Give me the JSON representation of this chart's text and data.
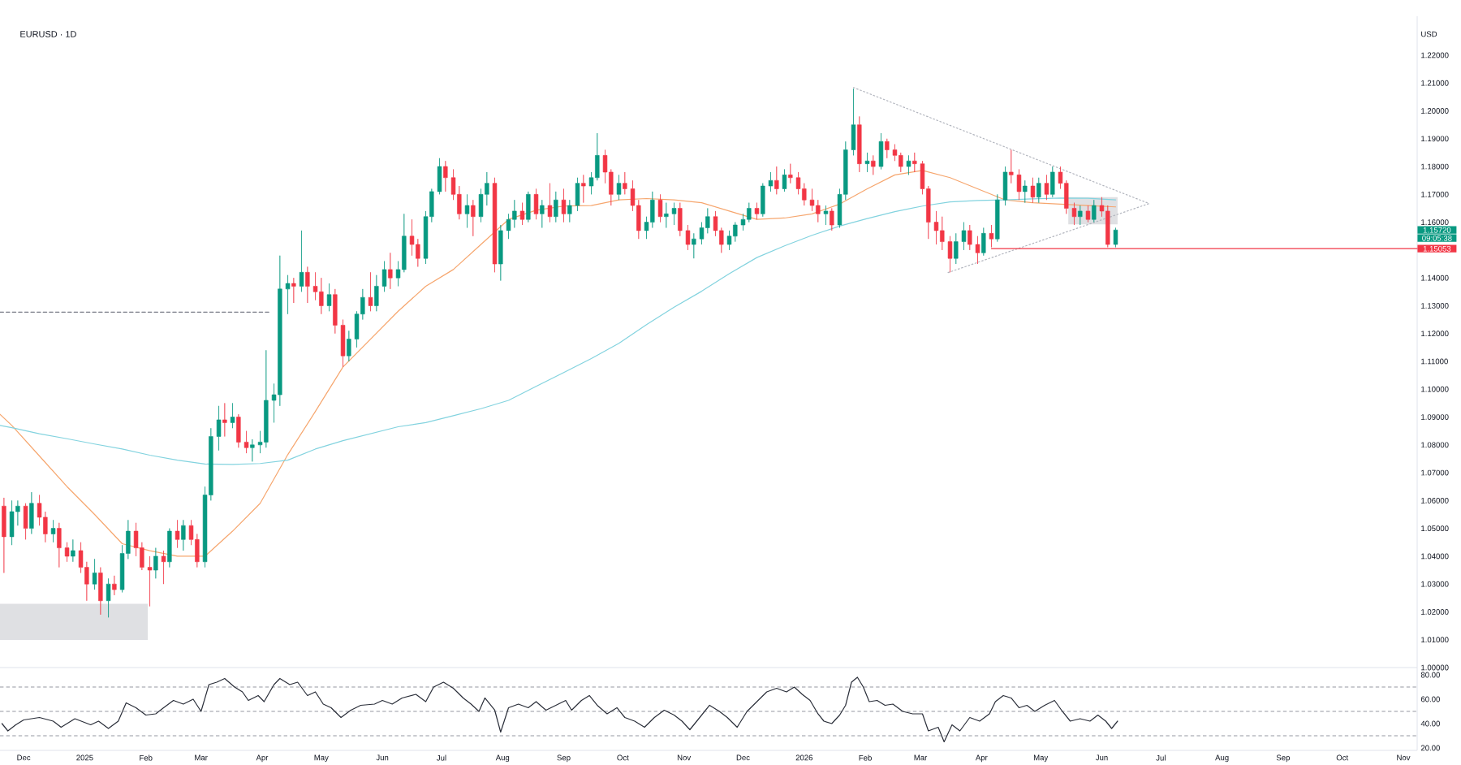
{
  "chart_data": [
    {
      "type": "candlestick",
      "title": "EURUSD · 1D",
      "ylabel": "USD",
      "xlim": [
        "2024-11-19",
        "2026-11-08"
      ],
      "ylim": [
        1.0,
        1.234
      ],
      "tick_labels": "y",
      "yticks": [
        {
          "value": 1.0,
          "label": "1.00000"
        },
        {
          "value": 1.01,
          "label": "1.01000"
        },
        {
          "value": 1.02,
          "label": "1.02000"
        },
        {
          "value": 1.03,
          "label": "1.03000"
        },
        {
          "value": 1.04,
          "label": "1.04000"
        },
        {
          "value": 1.05,
          "label": "1.05000"
        },
        {
          "value": 1.06,
          "label": "1.06000"
        },
        {
          "value": 1.07,
          "label": "1.07000"
        },
        {
          "value": 1.08,
          "label": "1.08000"
        },
        {
          "value": 1.09,
          "label": "1.09000"
        },
        {
          "value": 1.1,
          "label": "1.10000"
        },
        {
          "value": 1.11,
          "label": "1.11000"
        },
        {
          "value": 1.12,
          "label": "1.12000"
        },
        {
          "value": 1.13,
          "label": "1.13000"
        },
        {
          "value": 1.14,
          "label": "1.14000"
        },
        {
          "value": 1.16,
          "label": "1.16000"
        },
        {
          "value": 1.17,
          "label": "1.17000"
        },
        {
          "value": 1.18,
          "label": "1.18000"
        },
        {
          "value": 1.19,
          "label": "1.19000"
        },
        {
          "value": 1.2,
          "label": "1.20000"
        },
        {
          "value": 1.21,
          "label": "1.21000"
        },
        {
          "value": 1.22,
          "label": "1.22000"
        }
      ],
      "x": [
        "2024-11-21",
        "2024-11-25",
        "2024-11-28",
        "2024-12-02",
        "2024-12-05",
        "2024-12-09",
        "2024-12-12",
        "2024-12-16",
        "2024-12-19",
        "2024-12-23",
        "2024-12-26",
        "2024-12-30",
        "2025-01-02",
        "2025-01-06",
        "2025-01-09",
        "2025-01-13",
        "2025-01-16",
        "2025-01-20",
        "2025-01-23",
        "2025-01-27",
        "2025-01-30",
        "2025-02-03",
        "2025-02-06",
        "2025-02-10",
        "2025-02-13",
        "2025-02-17",
        "2025-02-20",
        "2025-02-24",
        "2025-02-27",
        "2025-03-03",
        "2025-03-06",
        "2025-03-10",
        "2025-03-13",
        "2025-03-17",
        "2025-03-20",
        "2025-03-24",
        "2025-03-27",
        "2025-03-31",
        "2025-04-03",
        "2025-04-07",
        "2025-04-10",
        "2025-04-14",
        "2025-04-17",
        "2025-04-21",
        "2025-04-24",
        "2025-04-28",
        "2025-05-01",
        "2025-05-05",
        "2025-05-08",
        "2025-05-12",
        "2025-05-15",
        "2025-05-19",
        "2025-05-22",
        "2025-05-26",
        "2025-05-29",
        "2025-06-02",
        "2025-06-05",
        "2025-06-09",
        "2025-06-12",
        "2025-06-16",
        "2025-06-19",
        "2025-06-23",
        "2025-06-26",
        "2025-06-30",
        "2025-07-03",
        "2025-07-07",
        "2025-07-10",
        "2025-07-14",
        "2025-07-17",
        "2025-07-21",
        "2025-07-24",
        "2025-07-28",
        "2025-07-31",
        "2025-08-04",
        "2025-08-07",
        "2025-08-11",
        "2025-08-14",
        "2025-08-18",
        "2025-08-21",
        "2025-08-25",
        "2025-08-28",
        "2025-09-01",
        "2025-09-04",
        "2025-09-08",
        "2025-09-11",
        "2025-09-15",
        "2025-09-18",
        "2025-09-22",
        "2025-09-25",
        "2025-09-29",
        "2025-10-02",
        "2025-10-06",
        "2025-10-09",
        "2025-10-13",
        "2025-10-16",
        "2025-10-20",
        "2025-10-23",
        "2025-10-27",
        "2025-10-30",
        "2025-11-03",
        "2025-11-06",
        "2025-11-10",
        "2025-11-13",
        "2025-11-17",
        "2025-11-20",
        "2025-11-24",
        "2025-11-27",
        "2025-12-01",
        "2025-12-04",
        "2025-12-08",
        "2025-12-11",
        "2025-12-15",
        "2025-12-18",
        "2025-12-22",
        "2025-12-25",
        "2025-12-29",
        "2026-01-01",
        "2026-01-05",
        "2026-01-08",
        "2026-01-12",
        "2026-01-15",
        "2026-01-19",
        "2026-01-22",
        "2026-01-26",
        "2026-01-29",
        "2026-02-02",
        "2026-02-05",
        "2026-02-09",
        "2026-02-12",
        "2026-02-16",
        "2026-02-19",
        "2026-02-23",
        "2026-02-26",
        "2026-03-02",
        "2026-03-05",
        "2026-03-09",
        "2026-03-12",
        "2026-03-16",
        "2026-03-19",
        "2026-03-23",
        "2026-03-26",
        "2026-03-30",
        "2026-04-02",
        "2026-04-06",
        "2026-04-09",
        "2026-04-13",
        "2026-04-16",
        "2026-04-20",
        "2026-04-23",
        "2026-04-27",
        "2026-04-30",
        "2026-05-04",
        "2026-05-07",
        "2026-05-11",
        "2026-05-14",
        "2026-05-18",
        "2026-05-21",
        "2026-05-25",
        "2026-05-28",
        "2026-06-01",
        "2026-06-04",
        "2026-06-08"
      ],
      "ohlc": [
        [
          1.058,
          1.061,
          1.034,
          1.047
        ],
        [
          1.047,
          1.06,
          1.044,
          1.056
        ],
        [
          1.056,
          1.06,
          1.051,
          1.058
        ],
        [
          1.058,
          1.059,
          1.046,
          1.05
        ],
        [
          1.05,
          1.063,
          1.048,
          1.059
        ],
        [
          1.059,
          1.062,
          1.051,
          1.054
        ],
        [
          1.054,
          1.056,
          1.045,
          1.048
        ],
        [
          1.048,
          1.053,
          1.045,
          1.05
        ],
        [
          1.05,
          1.052,
          1.036,
          1.043
        ],
        [
          1.043,
          1.045,
          1.038,
          1.04
        ],
        [
          1.04,
          1.046,
          1.038,
          1.042
        ],
        [
          1.042,
          1.045,
          1.034,
          1.036
        ],
        [
          1.036,
          1.038,
          1.024,
          1.03
        ],
        [
          1.03,
          1.039,
          1.028,
          1.034
        ],
        [
          1.034,
          1.036,
          1.019,
          1.024
        ],
        [
          1.024,
          1.032,
          1.018,
          1.03
        ],
        [
          1.03,
          1.033,
          1.026,
          1.028
        ],
        [
          1.028,
          1.044,
          1.027,
          1.041
        ],
        [
          1.041,
          1.053,
          1.039,
          1.049
        ],
        [
          1.049,
          1.052,
          1.04,
          1.043
        ],
        [
          1.043,
          1.045,
          1.035,
          1.036
        ],
        [
          1.036,
          1.04,
          1.022,
          1.035
        ],
        [
          1.035,
          1.043,
          1.032,
          1.04
        ],
        [
          1.04,
          1.042,
          1.03,
          1.038
        ],
        [
          1.038,
          1.05,
          1.036,
          1.049
        ],
        [
          1.049,
          1.053,
          1.043,
          1.046
        ],
        [
          1.046,
          1.053,
          1.042,
          1.051
        ],
        [
          1.051,
          1.053,
          1.044,
          1.046
        ],
        [
          1.046,
          1.048,
          1.036,
          1.038
        ],
        [
          1.038,
          1.065,
          1.036,
          1.062
        ],
        [
          1.062,
          1.086,
          1.06,
          1.083
        ],
        [
          1.083,
          1.094,
          1.078,
          1.089
        ],
        [
          1.089,
          1.095,
          1.083,
          1.088
        ],
        [
          1.088,
          1.095,
          1.086,
          1.09
        ],
        [
          1.09,
          1.091,
          1.079,
          1.081
        ],
        [
          1.081,
          1.085,
          1.077,
          1.079
        ],
        [
          1.079,
          1.082,
          1.074,
          1.08
        ],
        [
          1.08,
          1.085,
          1.077,
          1.081
        ],
        [
          1.081,
          1.114,
          1.079,
          1.096
        ],
        [
          1.096,
          1.102,
          1.088,
          1.098
        ],
        [
          1.098,
          1.148,
          1.094,
          1.136
        ],
        [
          1.136,
          1.141,
          1.127,
          1.138
        ],
        [
          1.138,
          1.14,
          1.131,
          1.137
        ],
        [
          1.137,
          1.157,
          1.135,
          1.142
        ],
        [
          1.142,
          1.144,
          1.131,
          1.137
        ],
        [
          1.137,
          1.142,
          1.132,
          1.135
        ],
        [
          1.135,
          1.14,
          1.127,
          1.13
        ],
        [
          1.13,
          1.138,
          1.128,
          1.134
        ],
        [
          1.134,
          1.136,
          1.12,
          1.123
        ],
        [
          1.123,
          1.125,
          1.108,
          1.112
        ],
        [
          1.112,
          1.121,
          1.11,
          1.118
        ],
        [
          1.118,
          1.128,
          1.115,
          1.127
        ],
        [
          1.127,
          1.136,
          1.125,
          1.133
        ],
        [
          1.133,
          1.142,
          1.128,
          1.13
        ],
        [
          1.13,
          1.141,
          1.128,
          1.137
        ],
        [
          1.137,
          1.146,
          1.135,
          1.143
        ],
        [
          1.143,
          1.149,
          1.136,
          1.14
        ],
        [
          1.14,
          1.146,
          1.137,
          1.143
        ],
        [
          1.143,
          1.163,
          1.142,
          1.155
        ],
        [
          1.155,
          1.161,
          1.148,
          1.152
        ],
        [
          1.152,
          1.154,
          1.144,
          1.147
        ],
        [
          1.147,
          1.164,
          1.145,
          1.162
        ],
        [
          1.162,
          1.172,
          1.16,
          1.171
        ],
        [
          1.171,
          1.183,
          1.17,
          1.18
        ],
        [
          1.18,
          1.182,
          1.171,
          1.176
        ],
        [
          1.176,
          1.179,
          1.168,
          1.17
        ],
        [
          1.17,
          1.173,
          1.161,
          1.163
        ],
        [
          1.163,
          1.17,
          1.158,
          1.166
        ],
        [
          1.166,
          1.168,
          1.155,
          1.162
        ],
        [
          1.162,
          1.172,
          1.16,
          1.17
        ],
        [
          1.17,
          1.178,
          1.166,
          1.174
        ],
        [
          1.174,
          1.176,
          1.142,
          1.145
        ],
        [
          1.145,
          1.159,
          1.139,
          1.157
        ],
        [
          1.157,
          1.163,
          1.154,
          1.161
        ],
        [
          1.161,
          1.168,
          1.158,
          1.164
        ],
        [
          1.164,
          1.167,
          1.159,
          1.161
        ],
        [
          1.161,
          1.171,
          1.16,
          1.17
        ],
        [
          1.17,
          1.172,
          1.161,
          1.163
        ],
        [
          1.163,
          1.168,
          1.158,
          1.166
        ],
        [
          1.166,
          1.174,
          1.16,
          1.162
        ],
        [
          1.162,
          1.171,
          1.16,
          1.168
        ],
        [
          1.168,
          1.172,
          1.16,
          1.163
        ],
        [
          1.163,
          1.168,
          1.16,
          1.166
        ],
        [
          1.166,
          1.176,
          1.164,
          1.174
        ],
        [
          1.174,
          1.177,
          1.167,
          1.173
        ],
        [
          1.173,
          1.178,
          1.17,
          1.176
        ],
        [
          1.176,
          1.192,
          1.175,
          1.184
        ],
        [
          1.184,
          1.186,
          1.174,
          1.178
        ],
        [
          1.178,
          1.179,
          1.166,
          1.17
        ],
        [
          1.17,
          1.177,
          1.168,
          1.174
        ],
        [
          1.174,
          1.178,
          1.17,
          1.172
        ],
        [
          1.172,
          1.175,
          1.164,
          1.166
        ],
        [
          1.166,
          1.168,
          1.154,
          1.157
        ],
        [
          1.157,
          1.162,
          1.154,
          1.16
        ],
        [
          1.16,
          1.171,
          1.158,
          1.168
        ],
        [
          1.168,
          1.17,
          1.16,
          1.162
        ],
        [
          1.162,
          1.167,
          1.158,
          1.163
        ],
        [
          1.163,
          1.167,
          1.159,
          1.165
        ],
        [
          1.165,
          1.167,
          1.155,
          1.157
        ],
        [
          1.157,
          1.159,
          1.15,
          1.152
        ],
        [
          1.152,
          1.156,
          1.147,
          1.154
        ],
        [
          1.154,
          1.16,
          1.152,
          1.158
        ],
        [
          1.158,
          1.165,
          1.156,
          1.162
        ],
        [
          1.162,
          1.164,
          1.155,
          1.157
        ],
        [
          1.157,
          1.158,
          1.149,
          1.152
        ],
        [
          1.152,
          1.157,
          1.15,
          1.155
        ],
        [
          1.155,
          1.16,
          1.153,
          1.159
        ],
        [
          1.159,
          1.163,
          1.157,
          1.161
        ],
        [
          1.161,
          1.167,
          1.16,
          1.165
        ],
        [
          1.165,
          1.167,
          1.161,
          1.163
        ],
        [
          1.163,
          1.174,
          1.162,
          1.173
        ],
        [
          1.173,
          1.178,
          1.171,
          1.175
        ],
        [
          1.175,
          1.18,
          1.17,
          1.172
        ],
        [
          1.172,
          1.179,
          1.171,
          1.177
        ],
        [
          1.177,
          1.181,
          1.174,
          1.176
        ],
        [
          1.176,
          1.178,
          1.17,
          1.172
        ],
        [
          1.172,
          1.174,
          1.166,
          1.168
        ],
        [
          1.168,
          1.172,
          1.164,
          1.166
        ],
        [
          1.166,
          1.168,
          1.16,
          1.163
        ],
        [
          1.163,
          1.166,
          1.159,
          1.164
        ],
        [
          1.164,
          1.165,
          1.157,
          1.159
        ],
        [
          1.159,
          1.172,
          1.158,
          1.17
        ],
        [
          1.17,
          1.189,
          1.168,
          1.186
        ],
        [
          1.186,
          1.208,
          1.184,
          1.195
        ],
        [
          1.195,
          1.198,
          1.178,
          1.181
        ],
        [
          1.181,
          1.185,
          1.178,
          1.182
        ],
        [
          1.182,
          1.184,
          1.177,
          1.18
        ],
        [
          1.18,
          1.192,
          1.179,
          1.189
        ],
        [
          1.189,
          1.19,
          1.183,
          1.186
        ],
        [
          1.186,
          1.188,
          1.182,
          1.184
        ],
        [
          1.184,
          1.185,
          1.178,
          1.18
        ],
        [
          1.18,
          1.184,
          1.177,
          1.182
        ],
        [
          1.182,
          1.185,
          1.178,
          1.181
        ],
        [
          1.181,
          1.182,
          1.17,
          1.172
        ],
        [
          1.172,
          1.173,
          1.154,
          1.16
        ],
        [
          1.16,
          1.164,
          1.152,
          1.157
        ],
        [
          1.157,
          1.162,
          1.15,
          1.153
        ],
        [
          1.153,
          1.155,
          1.142,
          1.147
        ],
        [
          1.147,
          1.156,
          1.145,
          1.153
        ],
        [
          1.153,
          1.16,
          1.15,
          1.157
        ],
        [
          1.157,
          1.159,
          1.15,
          1.152
        ],
        [
          1.152,
          1.155,
          1.145,
          1.149
        ],
        [
          1.149,
          1.158,
          1.148,
          1.156
        ],
        [
          1.156,
          1.159,
          1.151,
          1.154
        ],
        [
          1.154,
          1.17,
          1.153,
          1.168
        ],
        [
          1.168,
          1.18,
          1.166,
          1.178
        ],
        [
          1.178,
          1.186,
          1.174,
          1.177
        ],
        [
          1.177,
          1.179,
          1.168,
          1.171
        ],
        [
          1.171,
          1.175,
          1.167,
          1.173
        ],
        [
          1.173,
          1.176,
          1.167,
          1.169
        ],
        [
          1.169,
          1.176,
          1.167,
          1.174
        ],
        [
          1.174,
          1.177,
          1.168,
          1.17
        ],
        [
          1.17,
          1.18,
          1.169,
          1.178
        ],
        [
          1.178,
          1.18,
          1.172,
          1.174
        ],
        [
          1.174,
          1.175,
          1.163,
          1.165
        ],
        [
          1.165,
          1.167,
          1.159,
          1.162
        ],
        [
          1.162,
          1.166,
          1.159,
          1.164
        ],
        [
          1.164,
          1.166,
          1.16,
          1.161
        ],
        [
          1.161,
          1.168,
          1.16,
          1.166
        ],
        [
          1.166,
          1.169,
          1.162,
          1.164
        ],
        [
          1.164,
          1.166,
          1.151,
          1.152
        ],
        [
          1.152,
          1.158,
          1.151,
          1.1572
        ]
      ],
      "colors": [
        "#f23645",
        "#089981",
        "#089981",
        "#f23645",
        "#089981",
        "#f23645",
        "#f23645",
        "#089981",
        "#f23645",
        "#f23645",
        "#089981",
        "#f23645",
        "#f23645",
        "#089981",
        "#f23645",
        "#089981",
        "#f23645",
        "#089981",
        "#089981",
        "#f23645",
        "#f23645",
        "#f23645",
        "#089981",
        "#f23645",
        "#089981",
        "#f23645",
        "#089981",
        "#f23645",
        "#f23645",
        "#089981",
        "#089981",
        "#089981",
        "#f23645",
        "#089981",
        "#f23645",
        "#f23645",
        "#089981",
        "#089981",
        "#089981",
        "#089981",
        "#089981",
        "#089981",
        "#f23645",
        "#089981",
        "#f23645",
        "#f23645",
        "#f23645",
        "#089981",
        "#f23645",
        "#f23645",
        "#089981",
        "#089981",
        "#089981",
        "#f23645",
        "#089981",
        "#089981",
        "#f23645",
        "#089981",
        "#089981",
        "#f23645",
        "#f23645",
        "#089981",
        "#089981",
        "#089981",
        "#f23645",
        "#f23645",
        "#f23645",
        "#089981",
        "#f23645",
        "#089981",
        "#089981",
        "#f23645",
        "#089981",
        "#089981",
        "#089981",
        "#f23645",
        "#089981",
        "#f23645",
        "#089981",
        "#f23645",
        "#089981",
        "#f23645",
        "#089981",
        "#089981",
        "#f23645",
        "#089981",
        "#089981",
        "#f23645",
        "#f23645",
        "#089981",
        "#f23645",
        "#f23645",
        "#f23645",
        "#089981",
        "#089981",
        "#f23645",
        "#089981",
        "#089981",
        "#f23645",
        "#f23645",
        "#089981",
        "#089981",
        "#089981",
        "#f23645",
        "#f23645",
        "#089981",
        "#089981",
        "#089981",
        "#089981",
        "#f23645",
        "#089981",
        "#089981",
        "#f23645",
        "#089981",
        "#f23645",
        "#f23645",
        "#f23645",
        "#f23645",
        "#f23645",
        "#089981",
        "#f23645",
        "#089981",
        "#089981",
        "#089981",
        "#f23645",
        "#089981",
        "#f23645",
        "#089981",
        "#f23645",
        "#f23645",
        "#f23645",
        "#089981",
        "#f23645",
        "#f23645",
        "#f23645",
        "#f23645",
        "#f23645",
        "#f23645",
        "#089981",
        "#089981",
        "#f23645",
        "#f23645",
        "#089981",
        "#f23645",
        "#089981",
        "#089981",
        "#f23645",
        "#f23645",
        "#089981",
        "#f23645",
        "#089981",
        "#f23645",
        "#089981",
        "#f23645",
        "#f23645",
        "#f23645",
        "#089981",
        "#f23645",
        "#089981",
        "#f23645",
        "#f23645",
        "#089981"
      ],
      "series": [
        {
          "type": "line",
          "color": "#dfe0e3",
          "x": [
            "2024-11-19",
            "2025-02-02"
          ],
          "values": [
            null,
            null
          ],
          "lower": [
            1.0099,
            1.0099
          ],
          "upper": [
            1.0229,
            1.0229
          ]
        },
        {
          "type": "line",
          "color": "#dfe0e3",
          "x": [
            "2026-05-15",
            "2026-06-09"
          ],
          "values": [
            null,
            null
          ],
          "lower": [
            1.1592,
            1.1592
          ],
          "upper": [
            1.169,
            1.169
          ]
        },
        {
          "type": "line",
          "color": "#f6a66e",
          "x": [
            "2024-11-19",
            "2024-11-25",
            "2024-12-09",
            "2024-12-23",
            "2025-01-06",
            "2025-01-20",
            "2025-02-03",
            "2025-02-17",
            "2025-03-03",
            "2025-03-17",
            "2025-03-31",
            "2025-04-14",
            "2025-04-28",
            "2025-05-12",
            "2025-05-26",
            "2025-06-09",
            "2025-06-23",
            "2025-07-07",
            "2025-07-21",
            "2025-08-04",
            "2025-08-18",
            "2025-09-01",
            "2025-09-15",
            "2025-09-29",
            "2025-10-13",
            "2025-10-27",
            "2025-11-10",
            "2025-11-24",
            "2025-12-08",
            "2025-12-22",
            "2026-01-05",
            "2026-01-19",
            "2026-02-02",
            "2026-02-16",
            "2026-03-02",
            "2026-03-16",
            "2026-03-30",
            "2026-04-13",
            "2026-04-27",
            "2026-05-11",
            "2026-05-25",
            "2026-06-08"
          ],
          "values": [
            1.091,
            1.087,
            1.076,
            1.065,
            1.055,
            1.0445,
            1.042,
            1.04,
            1.04,
            1.049,
            1.059,
            1.0765,
            1.092,
            1.108,
            1.118,
            1.128,
            1.137,
            1.143,
            1.152,
            1.161,
            1.1643,
            1.1658,
            1.166,
            1.168,
            1.1685,
            1.168,
            1.167,
            1.164,
            1.161,
            1.1615,
            1.163,
            1.1665,
            1.172,
            1.177,
            1.1786,
            1.176,
            1.172,
            1.168,
            1.167,
            1.1665,
            1.166,
            1.1655
          ]
        },
        {
          "type": "line",
          "color": "#83d3df",
          "x": [
            "2024-11-19",
            "2024-11-25",
            "2024-12-09",
            "2024-12-23",
            "2025-01-06",
            "2025-01-20",
            "2025-02-03",
            "2025-02-17",
            "2025-03-03",
            "2025-03-17",
            "2025-03-31",
            "2025-04-14",
            "2025-04-28",
            "2025-05-12",
            "2025-05-26",
            "2025-06-09",
            "2025-06-23",
            "2025-07-07",
            "2025-07-21",
            "2025-08-04",
            "2025-08-18",
            "2025-09-01",
            "2025-09-15",
            "2025-09-29",
            "2025-10-13",
            "2025-10-27",
            "2025-11-10",
            "2025-11-24",
            "2025-12-08",
            "2025-12-22",
            "2026-01-05",
            "2026-01-19",
            "2026-02-02",
            "2026-02-16",
            "2026-03-02",
            "2026-03-16",
            "2026-03-30",
            "2026-04-13",
            "2026-04-27",
            "2026-05-11",
            "2026-05-25",
            "2026-06-08"
          ],
          "values": [
            1.087,
            1.0862,
            1.084,
            1.0822,
            1.0803,
            1.0785,
            1.0763,
            1.0745,
            1.0731,
            1.073,
            1.0733,
            1.0745,
            1.0785,
            1.0815,
            1.084,
            1.0865,
            1.088,
            1.0905,
            1.093,
            1.096,
            1.101,
            1.106,
            1.111,
            1.1165,
            1.1232,
            1.1295,
            1.1352,
            1.1415,
            1.1473,
            1.1515,
            1.1553,
            1.1586,
            1.1613,
            1.1638,
            1.1658,
            1.1673,
            1.1678,
            1.168,
            1.1684,
            1.1687,
            1.1686,
            1.168
          ]
        },
        {
          "type": "line",
          "color": "#787b86",
          "line_style": "dashed",
          "x": [
            "2024-11-19",
            "2025-04-05"
          ],
          "values": [
            1.1277,
            1.1277
          ]
        },
        {
          "type": "line",
          "color": "#b2b5be",
          "line_style": "dotted",
          "x": [
            "2026-01-26",
            "2026-06-25"
          ],
          "values": [
            1.2084,
            1.1667
          ]
        },
        {
          "type": "line",
          "color": "#b2b5be",
          "line_style": "dotted",
          "x": [
            "2026-03-15",
            "2026-06-25"
          ],
          "values": [
            1.1419,
            1.1667
          ]
        },
        {
          "type": "line",
          "color": "#f23645",
          "x": [
            "2026-04-06",
            "2026-11-08"
          ],
          "values": [
            1.1505,
            1.1505
          ]
        }
      ],
      "annotations": [
        "1.15720",
        "09:05:38",
        "1.15053"
      ]
    },
    {
      "type": "line",
      "xlim": [
        "2024-11-19",
        "2026-11-08"
      ],
      "ylim": [
        18,
        86
      ],
      "yticks": [
        {
          "value": 20,
          "label": "20.00"
        },
        {
          "value": 40,
          "label": "40.00"
        },
        {
          "value": 60,
          "label": "60.00"
        },
        {
          "value": 80,
          "label": "80.00"
        }
      ],
      "xticks": [
        {
          "value": "2024-12-01",
          "label": "Dec"
        },
        {
          "value": "2025-01-01",
          "label": "2025"
        },
        {
          "value": "2025-02-01",
          "label": "Feb"
        },
        {
          "value": "2025-03-01",
          "label": "Mar"
        },
        {
          "value": "2025-04-01",
          "label": "Apr"
        },
        {
          "value": "2025-05-01",
          "label": "May"
        },
        {
          "value": "2025-06-01",
          "label": "Jun"
        },
        {
          "value": "2025-07-01",
          "label": "Jul"
        },
        {
          "value": "2025-08-01",
          "label": "Aug"
        },
        {
          "value": "2025-09-01",
          "label": "Sep"
        },
        {
          "value": "2025-10-01",
          "label": "Oct"
        },
        {
          "value": "2025-11-01",
          "label": "Nov"
        },
        {
          "value": "2025-12-01",
          "label": "Dec"
        },
        {
          "value": "2026-01-01",
          "label": "2026"
        },
        {
          "value": "2026-02-01",
          "label": "Feb"
        },
        {
          "value": "2026-03-01",
          "label": "Mar"
        },
        {
          "value": "2026-04-01",
          "label": "Apr"
        },
        {
          "value": "2026-05-01",
          "label": "May"
        },
        {
          "value": "2026-06-01",
          "label": "Jun"
        },
        {
          "value": "2026-07-01",
          "label": "Jul"
        },
        {
          "value": "2026-08-01",
          "label": "Aug"
        },
        {
          "value": "2026-09-01",
          "label": "Sep"
        },
        {
          "value": "2026-10-01",
          "label": "Oct"
        },
        {
          "value": "2026-11-01",
          "label": "Nov"
        }
      ],
      "ref_lines": [
        {
          "axis": "y",
          "value": 70,
          "color": "#9598a1",
          "line_style": "dashed"
        },
        {
          "axis": "y",
          "value": 50,
          "color": "#9598a1",
          "line_style": "dashed"
        },
        {
          "axis": "y",
          "value": 30,
          "color": "#9598a1",
          "line_style": "dashed"
        }
      ],
      "series": [
        {
          "color": "#2a2e39",
          "x": [
            "2024-11-20",
            "2024-11-23",
            "2024-11-27",
            "2024-12-01",
            "2024-12-09",
            "2024-12-16",
            "2024-12-20",
            "2024-12-27",
            "2025-01-04",
            "2025-01-08",
            "2025-01-13",
            "2025-01-18",
            "2025-01-22",
            "2025-01-27",
            "2025-02-01",
            "2025-02-06",
            "2025-02-10",
            "2025-02-15",
            "2025-02-20",
            "2025-02-25",
            "2025-03-01",
            "2025-03-05",
            "2025-03-09",
            "2025-03-13",
            "2025-03-18",
            "2025-03-22",
            "2025-03-25",
            "2025-03-30",
            "2025-04-02",
            "2025-04-07",
            "2025-04-10",
            "2025-04-15",
            "2025-04-19",
            "2025-04-24",
            "2025-04-28",
            "2025-05-02",
            "2025-05-06",
            "2025-05-11",
            "2025-05-16",
            "2025-05-21",
            "2025-05-28",
            "2025-06-01",
            "2025-06-06",
            "2025-06-11",
            "2025-06-18",
            "2025-06-23",
            "2025-06-27",
            "2025-07-02",
            "2025-07-07",
            "2025-07-12",
            "2025-07-16",
            "2025-07-20",
            "2025-07-23",
            "2025-07-28",
            "2025-07-31",
            "2025-08-04",
            "2025-08-09",
            "2025-08-14",
            "2025-08-18",
            "2025-08-23",
            "2025-08-28",
            "2025-09-02",
            "2025-09-05",
            "2025-09-10",
            "2025-09-14",
            "2025-09-18",
            "2025-09-23",
            "2025-09-28",
            "2025-10-02",
            "2025-10-07",
            "2025-10-12",
            "2025-10-17",
            "2025-10-22",
            "2025-10-27",
            "2025-10-31",
            "2025-11-04",
            "2025-11-09",
            "2025-11-14",
            "2025-11-19",
            "2025-11-23",
            "2025-11-28",
            "2025-12-03",
            "2025-12-08",
            "2025-12-13",
            "2025-12-18",
            "2025-12-23",
            "2025-12-27",
            "2025-12-31",
            "2026-01-04",
            "2026-01-08",
            "2026-01-11",
            "2026-01-15",
            "2026-01-19",
            "2026-01-22",
            "2026-01-25",
            "2026-01-28",
            "2026-01-31",
            "2026-02-03",
            "2026-02-07",
            "2026-02-11",
            "2026-02-15",
            "2026-02-20",
            "2026-02-25",
            "2026-03-02",
            "2026-03-05",
            "2026-03-10",
            "2026-03-13",
            "2026-03-17",
            "2026-03-21",
            "2026-03-26",
            "2026-03-31",
            "2026-04-05",
            "2026-04-08",
            "2026-04-12",
            "2026-04-16",
            "2026-04-20",
            "2026-04-24",
            "2026-04-28",
            "2026-05-03",
            "2026-05-08",
            "2026-05-12",
            "2026-05-16",
            "2026-05-21",
            "2026-05-26",
            "2026-05-30",
            "2026-06-03",
            "2026-06-06",
            "2026-06-09"
          ],
          "values": [
            40,
            34,
            39,
            43,
            45,
            42,
            37,
            44,
            39,
            42,
            36,
            42,
            57,
            53,
            47,
            48,
            53,
            59,
            56,
            60,
            50,
            72,
            74,
            77,
            70,
            66,
            59,
            63,
            58,
            72,
            77,
            72,
            74,
            63,
            66,
            56,
            53,
            45,
            51,
            55,
            56,
            59,
            56,
            61,
            64,
            58,
            70,
            74,
            69,
            61,
            56,
            50,
            61,
            51,
            33,
            53,
            56,
            53,
            58,
            51,
            55,
            59,
            51,
            59,
            63,
            55,
            48,
            53,
            45,
            42,
            37,
            45,
            51,
            47,
            42,
            35,
            45,
            55,
            50,
            45,
            37,
            50,
            58,
            66,
            69,
            66,
            70,
            64,
            59,
            48,
            42,
            40,
            47,
            55,
            74,
            78,
            70,
            58,
            59,
            55,
            56,
            50,
            48,
            48,
            34,
            37,
            25,
            39,
            34,
            45,
            42,
            48,
            58,
            63,
            61,
            53,
            55,
            50,
            55,
            59,
            50,
            42,
            44,
            42,
            47,
            42,
            36,
            42
          ]
        }
      ]
    }
  ]
}
